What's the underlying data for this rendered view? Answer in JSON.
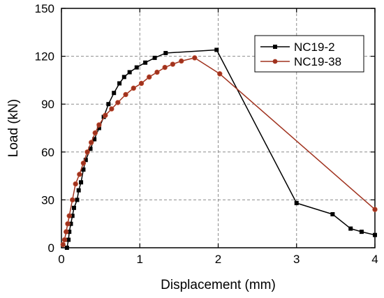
{
  "chart_data": {
    "type": "line",
    "title": "",
    "xlabel": "Displacement (mm)",
    "ylabel": "Load (kN)",
    "xlim": [
      0,
      4
    ],
    "ylim": [
      0,
      150
    ],
    "xticks": [
      0,
      1,
      2,
      3,
      4
    ],
    "yticks": [
      0,
      30,
      60,
      90,
      120,
      150
    ],
    "grid": true,
    "legend_position": "top-right",
    "series": [
      {
        "name": "NC19-2",
        "color": "#000000",
        "marker": "square",
        "x": [
          0.07,
          0.09,
          0.1,
          0.12,
          0.14,
          0.16,
          0.2,
          0.22,
          0.25,
          0.28,
          0.31,
          0.37,
          0.42,
          0.48,
          0.54,
          0.6,
          0.67,
          0.74,
          0.8,
          0.87,
          0.96,
          1.07,
          1.19,
          1.33,
          1.98,
          3.0,
          3.46,
          3.69,
          3.83,
          4.0
        ],
        "y": [
          0,
          5,
          10,
          15,
          20,
          25,
          30,
          36,
          41,
          49,
          55,
          62,
          68,
          75,
          82,
          90,
          97,
          103,
          107,
          110,
          113,
          116,
          119,
          122,
          124,
          28,
          21,
          12,
          10,
          8
        ]
      },
      {
        "name": "NC19-38",
        "color": "#a0321e",
        "marker": "circle",
        "x": [
          0.02,
          0.04,
          0.06,
          0.08,
          0.1,
          0.14,
          0.18,
          0.23,
          0.28,
          0.33,
          0.38,
          0.43,
          0.48,
          0.56,
          0.64,
          0.72,
          0.82,
          0.92,
          1.02,
          1.12,
          1.22,
          1.32,
          1.42,
          1.53,
          1.7,
          2.02,
          4.0
        ],
        "y": [
          2,
          5,
          10,
          15,
          20,
          30,
          40,
          46,
          53,
          60,
          66,
          72,
          77,
          83,
          87,
          91,
          96,
          100,
          103,
          107,
          110,
          113,
          115,
          117,
          119,
          109,
          24
        ]
      }
    ]
  }
}
